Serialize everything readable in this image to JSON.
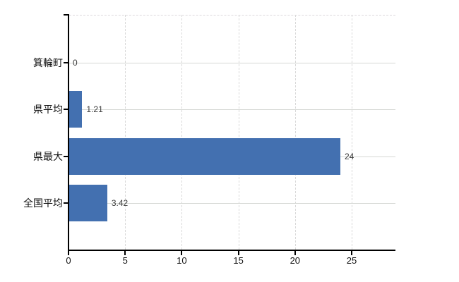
{
  "chart_data": {
    "type": "bar",
    "orientation": "horizontal",
    "title": "",
    "xlabel": "",
    "ylabel": "",
    "categories": [
      "箕輪町",
      "県平均",
      "県最大",
      "全国平均"
    ],
    "values": [
      0,
      1.21,
      24,
      3.42
    ],
    "value_labels": [
      "0",
      "1.21",
      "24",
      "3.42"
    ],
    "xticks": [
      "0",
      "5",
      "10",
      "15",
      "20",
      "25"
    ],
    "xtick_values": [
      0,
      5,
      10,
      15,
      20,
      25
    ],
    "xlim": [
      0,
      28.8
    ],
    "grid": true,
    "legend_position": "none",
    "bar_color": "#4370b0",
    "axis_color": "#000000",
    "vgrid_color": "#d9d9d9",
    "hgrid_color": "#d6d8d4",
    "label_color": "#111111",
    "value_label_color": "#3c3c3c",
    "background_color": "#ffffff"
  }
}
